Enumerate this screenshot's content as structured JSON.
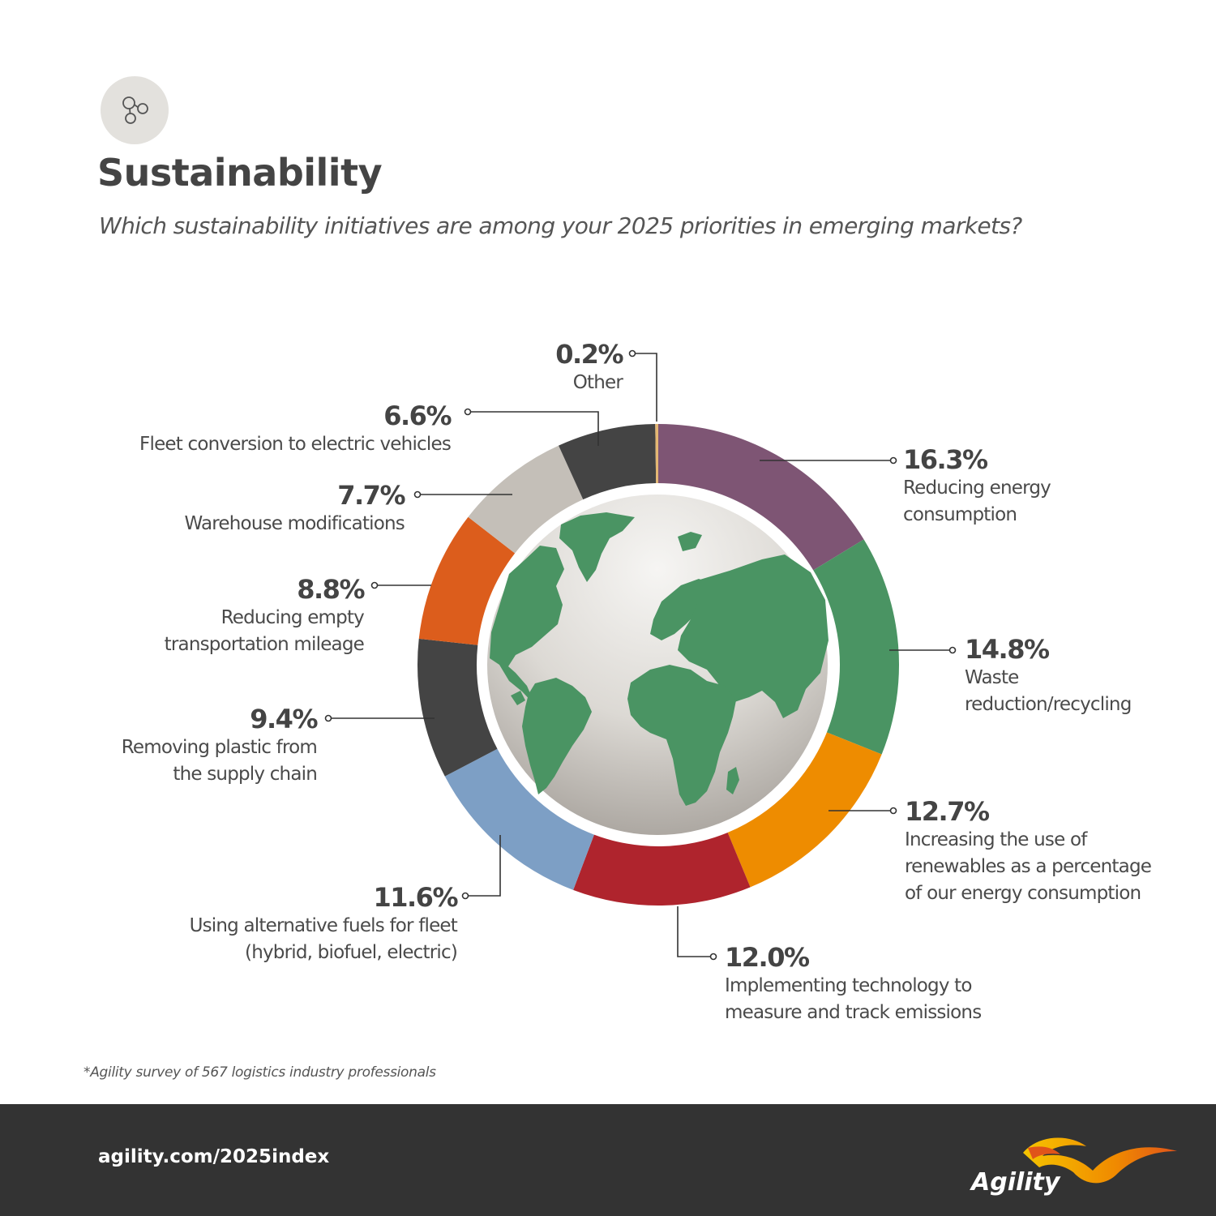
{
  "header": {
    "icon": "molecule-nodes-icon",
    "title": "Sustainability",
    "subtitle": "Which sustainability initiatives are among your 2025 priorities in emerging markets?"
  },
  "chart_data": {
    "type": "pie",
    "variant": "donut",
    "center_image": "globe",
    "slices": [
      {
        "value": 16.3,
        "pct_label": "16.3%",
        "label_lines": [
          "Reducing energy",
          "consumption"
        ],
        "color": "#7e5574"
      },
      {
        "value": 14.8,
        "pct_label": "14.8%",
        "label_lines": [
          "Waste",
          "reduction/recycling"
        ],
        "color": "#4a9463"
      },
      {
        "value": 12.7,
        "pct_label": "12.7%",
        "label_lines": [
          "Increasing the use of",
          "renewables as a percentage",
          "of our energy consumption"
        ],
        "color": "#ee8c00"
      },
      {
        "value": 12.0,
        "pct_label": "12.0%",
        "label_lines": [
          "Implementing technology to",
          "measure and track emissions"
        ],
        "color": "#af242d"
      },
      {
        "value": 11.6,
        "pct_label": "11.6%",
        "label_lines": [
          "Using alternative fuels for fleet",
          "(hybrid, biofuel, electric)"
        ],
        "color": "#7d9fc5"
      },
      {
        "value": 9.4,
        "pct_label": "9.4%",
        "label_lines": [
          "Removing plastic from",
          "the supply chain"
        ],
        "color": "#444444"
      },
      {
        "value": 8.8,
        "pct_label": "8.8%",
        "label_lines": [
          "Reducing empty",
          "transportation mileage"
        ],
        "color": "#dc5d1c"
      },
      {
        "value": 7.7,
        "pct_label": "7.7%",
        "label_lines": [
          "Warehouse modifications"
        ],
        "color": "#c4bfb8"
      },
      {
        "value": 6.6,
        "pct_label": "6.6%",
        "label_lines": [
          "Fleet conversion to electric vehicles"
        ],
        "color": "#444444"
      },
      {
        "value": 0.2,
        "pct_label": "0.2%",
        "label_lines": [
          "Other"
        ],
        "color": "#e4b773"
      }
    ]
  },
  "footnote": "*Agility survey of 567 logistics industry professionals",
  "footer": {
    "url": "agility.com/2025index",
    "logo_text": "Agility"
  }
}
